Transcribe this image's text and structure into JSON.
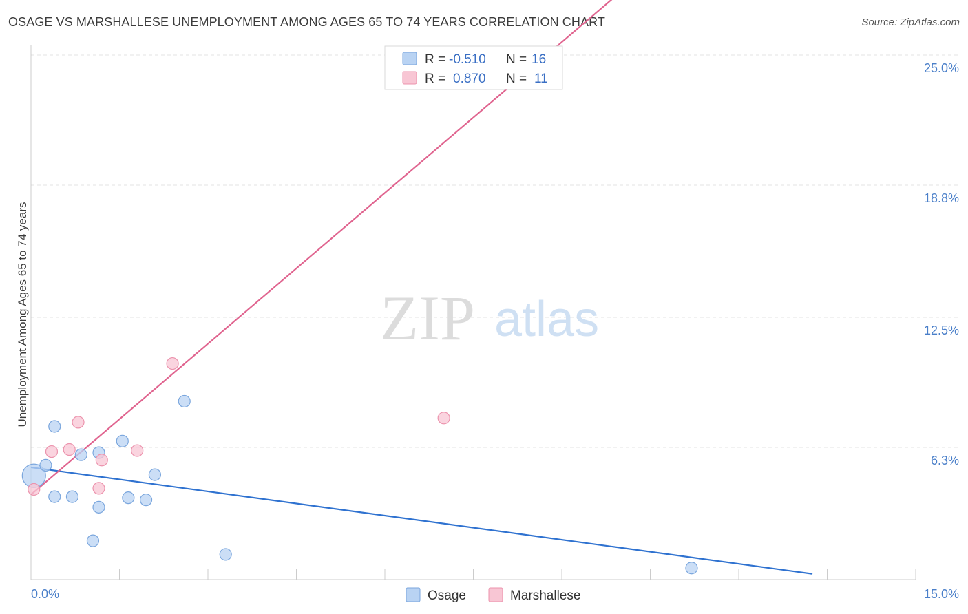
{
  "header": {
    "title": "OSAGE VS MARSHALLESE UNEMPLOYMENT AMONG AGES 65 TO 74 YEARS CORRELATION CHART",
    "source": "Source: ZipAtlas.com"
  },
  "watermark": {
    "zip": "ZIP",
    "atlas": "atlas"
  },
  "legend": {
    "rows": [
      {
        "r_label": "R =",
        "r_value": "-0.510",
        "n_label": "N =",
        "n_value": "16"
      },
      {
        "r_label": "R =",
        "r_value": "0.870",
        "n_label": "N =",
        "n_value": "11"
      }
    ]
  },
  "colors": {
    "osage_fill": "#b9d3f3",
    "osage_stroke": "#7aa6dd",
    "osage_line": "#2f72d0",
    "marsh_fill": "#f8c6d4",
    "marsh_stroke": "#ec93ad",
    "marsh_line": "#e0648f",
    "grid": "#e3e3e3",
    "tick_text": "#4a7fc9"
  },
  "chart_data": {
    "type": "scatter",
    "title": "OSAGE VS MARSHALLESE UNEMPLOYMENT AMONG AGES 65 TO 74 YEARS CORRELATION CHART",
    "xlabel": "",
    "ylabel": "Unemployment Among Ages 65 to 74 years",
    "xlim": [
      0,
      15
    ],
    "ylim": [
      0,
      25.5
    ],
    "x_tick_labels": [
      "0.0%",
      "15.0%"
    ],
    "y_ticks": [
      6.3,
      12.5,
      18.8,
      25.0
    ],
    "y_tick_labels": [
      "6.3%",
      "12.5%",
      "18.8%",
      "25.0%"
    ],
    "grid": true,
    "legend_position": "top-center",
    "series": [
      {
        "name": "Osage",
        "points": [
          [
            0.05,
            4.95
          ],
          [
            0.25,
            5.45
          ],
          [
            0.4,
            7.3
          ],
          [
            0.4,
            3.95
          ],
          [
            0.7,
            3.95
          ],
          [
            0.85,
            5.95
          ],
          [
            1.05,
            1.85
          ],
          [
            1.15,
            3.45
          ],
          [
            1.15,
            6.05
          ],
          [
            1.55,
            6.6
          ],
          [
            1.65,
            3.9
          ],
          [
            1.95,
            3.8
          ],
          [
            2.1,
            5.0
          ],
          [
            2.6,
            8.5
          ],
          [
            3.3,
            1.2
          ],
          [
            11.2,
            0.55
          ]
        ],
        "trend": {
          "x": [
            0,
            15
          ],
          "y": [
            5.35,
            -0.4
          ]
        }
      },
      {
        "name": "Marshallese",
        "points": [
          [
            0.05,
            4.3
          ],
          [
            0.35,
            6.1
          ],
          [
            0.65,
            6.2
          ],
          [
            0.8,
            7.5
          ],
          [
            1.15,
            4.35
          ],
          [
            1.2,
            5.7
          ],
          [
            1.8,
            6.15
          ],
          [
            2.4,
            10.3
          ],
          [
            7.0,
            7.7
          ],
          [
            8.55,
            25.0
          ],
          [
            8.75,
            25.0
          ]
        ],
        "trend": {
          "x": [
            0,
            15
          ],
          "y": [
            4.05,
            40.0
          ]
        }
      }
    ]
  },
  "bottom_legend": {
    "items": [
      "Osage",
      "Marshallese"
    ]
  }
}
